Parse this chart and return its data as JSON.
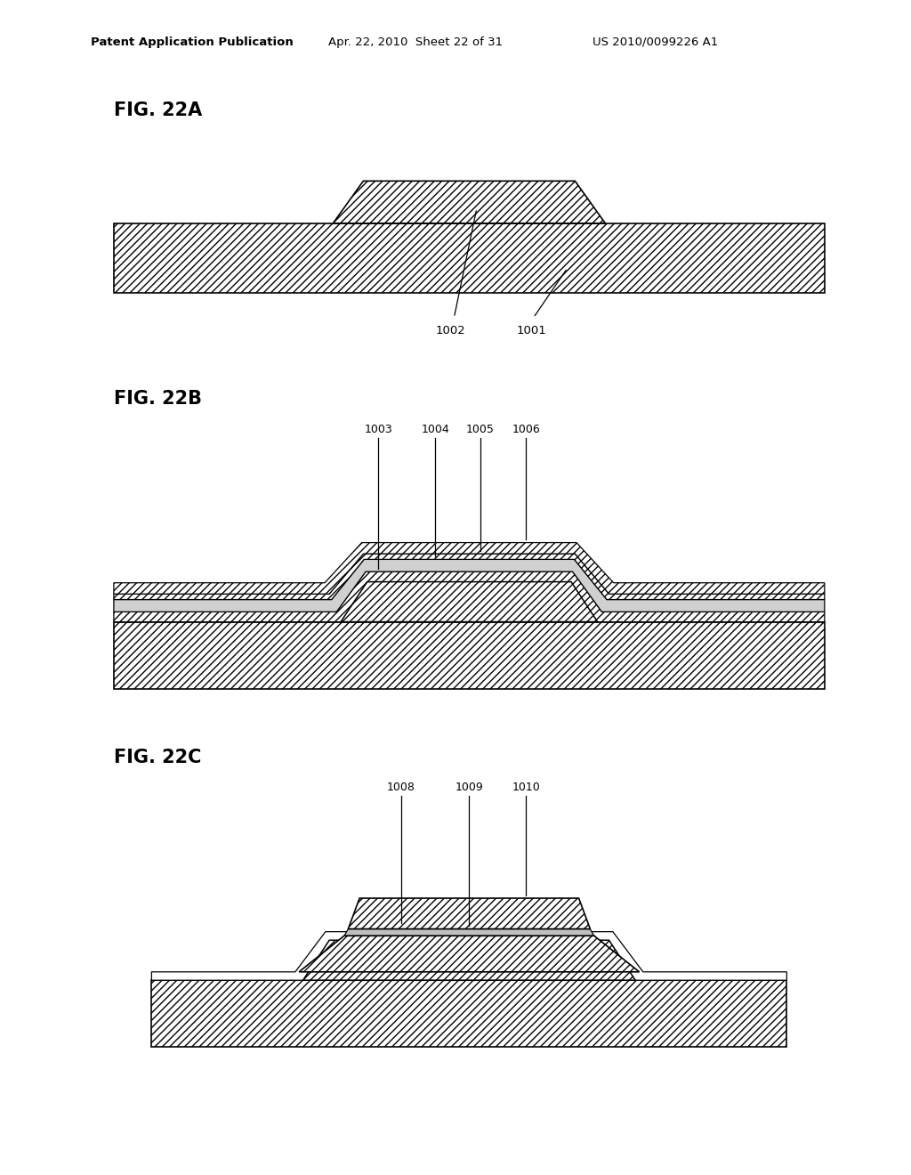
{
  "header_left": "Patent Application Publication",
  "header_center": "Apr. 22, 2010  Sheet 22 of 31",
  "header_right": "US 2010/0099226 A1",
  "bg_color": "#ffffff",
  "line_color": "#000000"
}
